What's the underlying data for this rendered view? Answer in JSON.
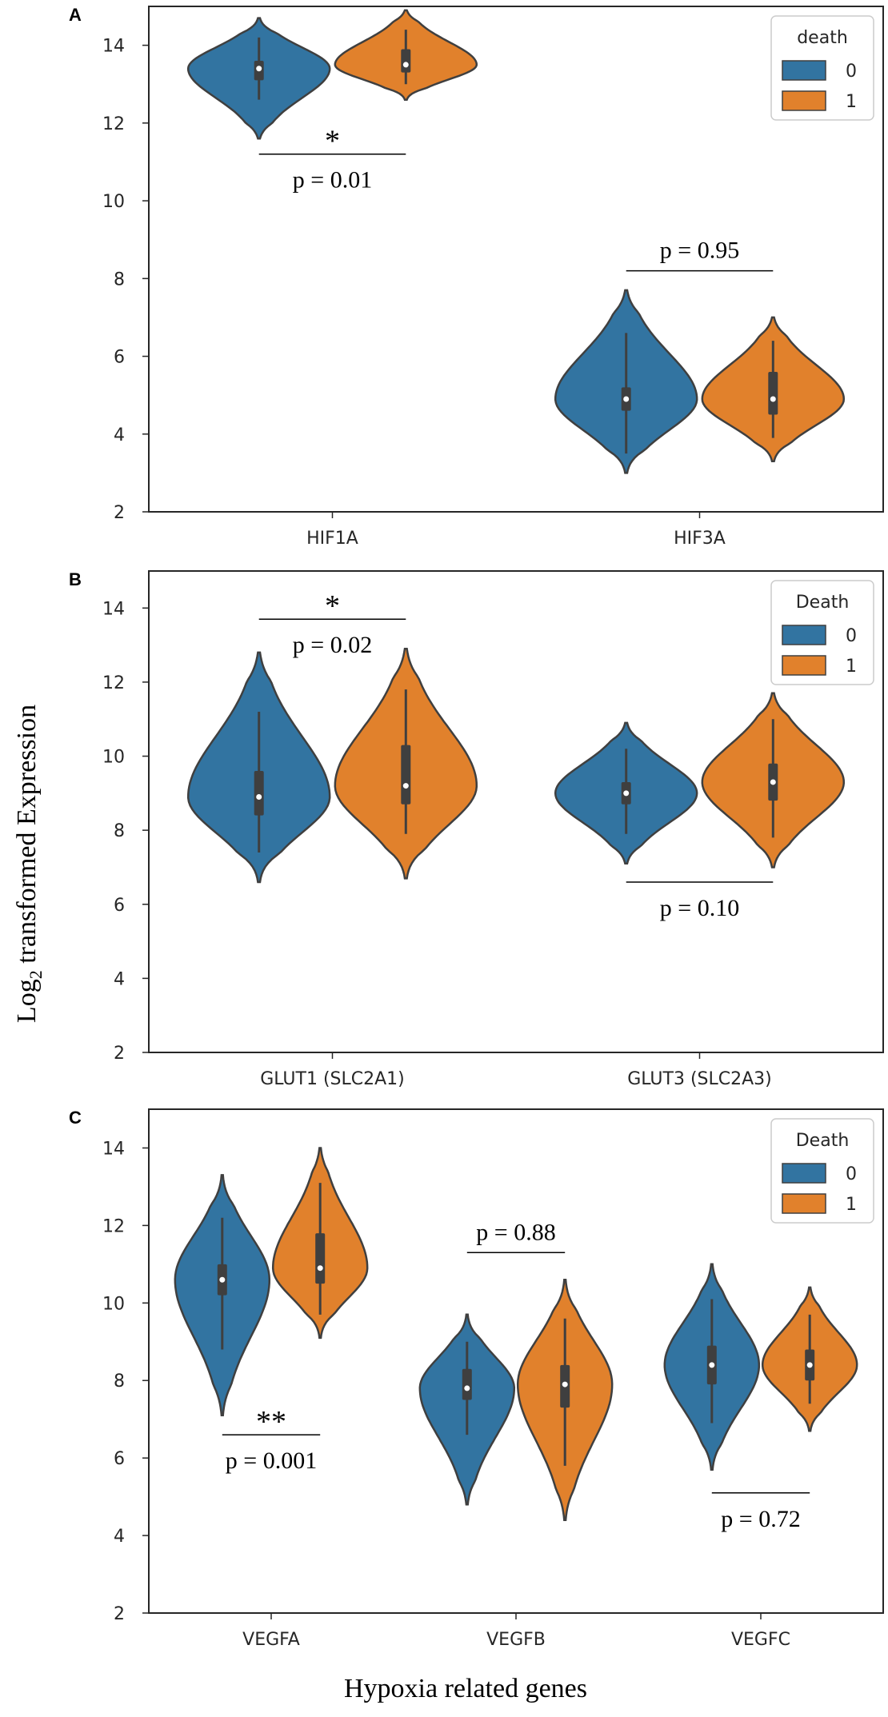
{
  "figure": {
    "ylabel_main": "Log",
    "ylabel_sub": "2",
    "ylabel_rest": " transformed Expression",
    "xlabel": "Hypoxia related genes"
  },
  "colors": {
    "group0": "#3274a1",
    "group1": "#e1812c",
    "outline": "#3f3f3f"
  },
  "chart_data": [
    {
      "panel": "A",
      "type": "violin",
      "ylim": [
        2,
        15
      ],
      "yticks": [
        2,
        4,
        6,
        8,
        10,
        12,
        14
      ],
      "categories": [
        "HIF1A",
        "HIF3A"
      ],
      "legend": {
        "title": "death",
        "labels": [
          "0",
          "1"
        ]
      },
      "series": [
        {
          "name": "0",
          "medians": [
            13.4,
            4.9
          ],
          "q1": [
            13.1,
            4.6
          ],
          "q3": [
            13.6,
            5.2
          ],
          "wlow": [
            12.6,
            3.5
          ],
          "whigh": [
            14.2,
            6.6
          ],
          "vmin": [
            11.6,
            3.0
          ],
          "vmax": [
            14.7,
            7.7
          ]
        },
        {
          "name": "1",
          "medians": [
            13.5,
            4.9
          ],
          "q1": [
            13.3,
            4.5
          ],
          "q3": [
            13.9,
            5.6
          ],
          "wlow": [
            13.0,
            3.9
          ],
          "whigh": [
            14.4,
            6.4
          ],
          "vmin": [
            12.6,
            3.3
          ],
          "vmax": [
            14.9,
            7.0
          ]
        }
      ],
      "annotations": [
        {
          "category": "HIF1A",
          "stars": "*",
          "p": "p = 0.01",
          "line_y": 11.2,
          "pos": "below"
        },
        {
          "category": "HIF3A",
          "stars": "",
          "p": "p = 0.95",
          "line_y": 8.2,
          "pos": "above"
        }
      ]
    },
    {
      "panel": "B",
      "type": "violin",
      "ylim": [
        2,
        15
      ],
      "yticks": [
        2,
        4,
        6,
        8,
        10,
        12,
        14
      ],
      "categories": [
        "GLUT1 (SLC2A1)",
        "GLUT3 (SLC2A3)"
      ],
      "legend": {
        "title": "Death",
        "labels": [
          "0",
          "1"
        ]
      },
      "series": [
        {
          "name": "0",
          "medians": [
            8.9,
            9.0
          ],
          "q1": [
            8.4,
            8.7
          ],
          "q3": [
            9.6,
            9.3
          ],
          "wlow": [
            7.4,
            7.9
          ],
          "whigh": [
            11.2,
            10.2
          ],
          "vmin": [
            6.6,
            7.1
          ],
          "vmax": [
            12.8,
            10.9
          ]
        },
        {
          "name": "1",
          "medians": [
            9.2,
            9.3
          ],
          "q1": [
            8.7,
            8.8
          ],
          "q3": [
            10.3,
            9.8
          ],
          "wlow": [
            7.9,
            7.8
          ],
          "whigh": [
            11.8,
            11.0
          ],
          "vmin": [
            6.7,
            7.0
          ],
          "vmax": [
            12.9,
            11.7
          ]
        }
      ],
      "annotations": [
        {
          "category": "GLUT1 (SLC2A1)",
          "stars": "*",
          "p": "p = 0.02",
          "line_y": 13.7,
          "pos": "below"
        },
        {
          "category": "GLUT3 (SLC2A3)",
          "stars": "",
          "p": "p = 0.10",
          "line_y": 6.6,
          "pos": "below"
        }
      ]
    },
    {
      "panel": "C",
      "type": "violin",
      "ylim": [
        2,
        15
      ],
      "yticks": [
        2,
        4,
        6,
        8,
        10,
        12,
        14
      ],
      "categories": [
        "VEGFA",
        "VEGFB",
        "VEGFC"
      ],
      "legend": {
        "title": "Death",
        "labels": [
          "0",
          "1"
        ]
      },
      "series": [
        {
          "name": "0",
          "medians": [
            10.6,
            7.8,
            8.4
          ],
          "q1": [
            10.2,
            7.5,
            7.9
          ],
          "q3": [
            11.0,
            8.3,
            8.9
          ],
          "wlow": [
            8.8,
            6.6,
            6.9
          ],
          "whigh": [
            12.2,
            9.0,
            10.1
          ],
          "vmin": [
            7.1,
            4.8,
            5.7
          ],
          "vmax": [
            13.3,
            9.7,
            11.0
          ]
        },
        {
          "name": "1",
          "medians": [
            10.9,
            7.9,
            8.4
          ],
          "q1": [
            10.5,
            7.3,
            8.0
          ],
          "q3": [
            11.8,
            8.4,
            8.8
          ],
          "wlow": [
            9.7,
            5.8,
            7.4
          ],
          "whigh": [
            13.1,
            9.6,
            9.7
          ],
          "vmin": [
            9.1,
            4.4,
            6.7
          ],
          "vmax": [
            14.0,
            10.6,
            10.4
          ]
        }
      ],
      "annotations": [
        {
          "category": "VEGFA",
          "stars": "**",
          "p": "p = 0.001",
          "line_y": 6.6,
          "pos": "below"
        },
        {
          "category": "VEGFB",
          "stars": "",
          "p": "p = 0.88",
          "line_y": 11.3,
          "pos": "above"
        },
        {
          "category": "VEGFC",
          "stars": "",
          "p": "p = 0.72",
          "line_y": 5.1,
          "pos": "below"
        }
      ]
    }
  ]
}
